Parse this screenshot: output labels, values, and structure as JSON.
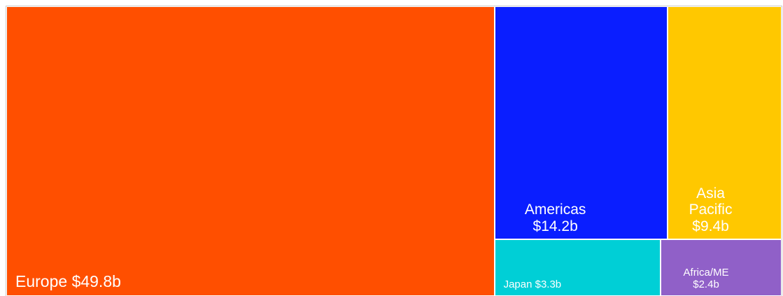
{
  "chart_data": {
    "type": "treemap",
    "categories": [
      "Europe",
      "Americas",
      "Asia Pacific",
      "Japan",
      "Africa/ME"
    ],
    "values": [
      49.8,
      14.2,
      9.4,
      3.3,
      2.4
    ],
    "value_labels": [
      "$49.8b",
      "$14.2b",
      "$9.4b",
      "$3.3b",
      "$2.4b"
    ],
    "colors": [
      "#ff4f00",
      "#0a1eff",
      "#ffc800",
      "#00cfd6",
      "#9060c8"
    ]
  }
}
